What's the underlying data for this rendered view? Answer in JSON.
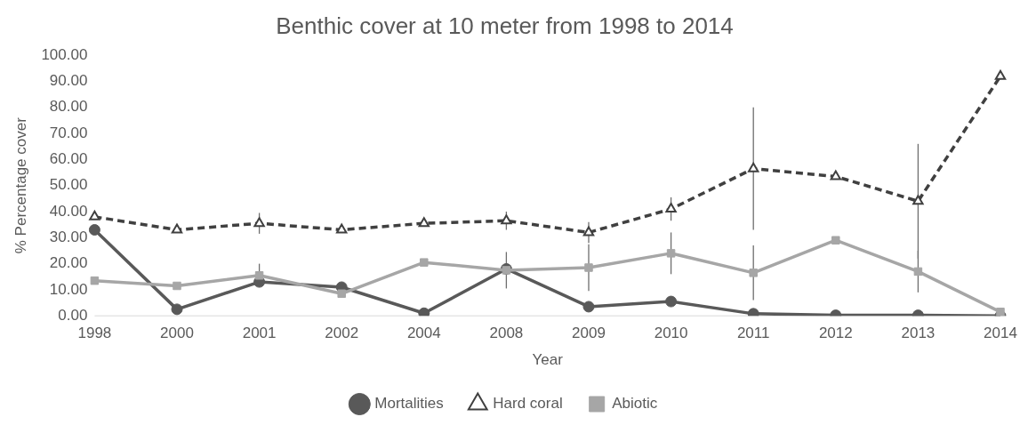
{
  "chart_data": {
    "type": "line",
    "title": "Benthic cover at 10 meter from 1998 to 2014",
    "xlabel": "Year",
    "ylabel": "% Percentage cover",
    "categories": [
      "1998",
      "2000",
      "2001",
      "2002",
      "2004",
      "2008",
      "2009",
      "2010",
      "2011",
      "2012",
      "2013",
      "2014"
    ],
    "ylim": [
      0,
      100
    ],
    "yticks": [
      {
        "value": 0,
        "label": "0.00"
      },
      {
        "value": 10,
        "label": "10.00"
      },
      {
        "value": 20,
        "label": "20.00"
      },
      {
        "value": 30,
        "label": "30.00"
      },
      {
        "value": 40,
        "label": "40.00"
      },
      {
        "value": 50,
        "label": "50.00"
      },
      {
        "value": 60,
        "label": "60.00"
      },
      {
        "value": 70,
        "label": "70.00"
      },
      {
        "value": 80,
        "label": "80.00"
      },
      {
        "value": 90,
        "label": "90.00"
      },
      {
        "value": 100,
        "label": "100.00"
      }
    ],
    "grid": false,
    "legend": "bottom",
    "series": [
      {
        "name": "Mortalities",
        "color": "#595959",
        "marker": "circle",
        "line_style": "solid",
        "values": [
          33,
          2.5,
          13,
          11,
          1,
          18,
          3.5,
          5.5,
          0.8,
          0.2,
          0.2,
          0
        ]
      },
      {
        "name": "Hard coral",
        "color": "#404040",
        "marker": "triangle",
        "line_style": "dashed",
        "values": [
          38,
          33,
          35.5,
          33,
          35.5,
          36.5,
          32,
          41,
          56.5,
          53.5,
          44,
          92
        ],
        "errors": [
          null,
          null,
          4,
          null,
          null,
          3.5,
          4,
          4.5,
          23.5,
          null,
          22,
          null
        ]
      },
      {
        "name": "Abiotic",
        "color": "#a6a6a6",
        "marker": "square",
        "line_style": "solid",
        "values": [
          13.5,
          11.5,
          15.5,
          8.5,
          20.5,
          17.5,
          18.5,
          24,
          16.5,
          29,
          17,
          1.5
        ],
        "errors": [
          null,
          null,
          4.5,
          null,
          null,
          7,
          9,
          8,
          10.5,
          null,
          8,
          null
        ]
      }
    ]
  }
}
